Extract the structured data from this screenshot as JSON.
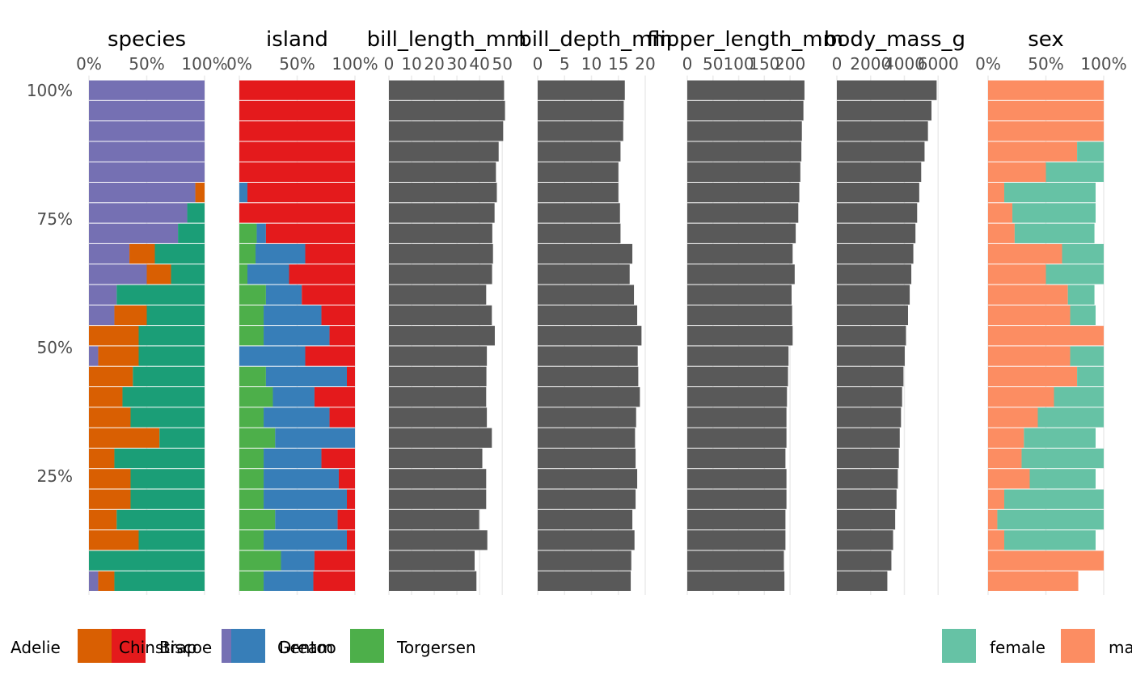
{
  "colors": {
    "Adelie": "#7570B3",
    "Chinstrap": "#D95F02",
    "Gentoo": "#1B9E77",
    "Biscoe": "#E41A1C",
    "Dream": "#377EB8",
    "Torgersen": "#4DAF4A",
    "female": "#66C2A5",
    "male": "#FC8D62",
    "numeric": "#595959",
    "grid": "#EBEBEB",
    "text": "#4D4D4D"
  },
  "y_axis": {
    "labels": [
      "100%",
      "75%",
      "50%",
      "25%"
    ],
    "values": [
      100,
      75,
      50,
      25
    ]
  },
  "chart_data": [
    {
      "type": "bar",
      "title": "species",
      "stacked": true,
      "orientation": "horizontal",
      "x_ticks": [
        "0%",
        "50%",
        "100%"
      ],
      "xlim": [
        0,
        100
      ],
      "levels": [
        "Adelie",
        "Chinstrap",
        "Gentoo"
      ],
      "rows": [
        [
          100,
          0,
          0
        ],
        [
          100,
          0,
          0
        ],
        [
          100,
          0,
          0
        ],
        [
          100,
          0,
          0
        ],
        [
          100,
          0,
          0
        ],
        [
          92,
          8,
          0
        ],
        [
          85,
          0,
          15
        ],
        [
          77,
          0,
          23
        ],
        [
          35,
          22,
          43
        ],
        [
          50,
          21,
          29
        ],
        [
          24,
          0,
          76
        ],
        [
          22,
          28,
          50
        ],
        [
          0,
          43,
          57
        ],
        [
          8,
          35,
          57
        ],
        [
          0,
          38,
          62
        ],
        [
          0,
          29,
          71
        ],
        [
          0,
          36,
          64
        ],
        [
          0,
          61,
          39
        ],
        [
          0,
          22,
          78
        ],
        [
          0,
          36,
          64
        ],
        [
          0,
          36,
          64
        ],
        [
          0,
          24,
          76
        ],
        [
          0,
          43,
          57
        ],
        [
          0,
          0,
          100
        ],
        [
          8,
          14,
          78
        ]
      ]
    },
    {
      "type": "bar",
      "title": "island",
      "stacked": true,
      "orientation": "horizontal",
      "x_ticks": [
        "0%",
        "50%",
        "100%"
      ],
      "xlim": [
        0,
        100
      ],
      "levels": [
        "Torgersen",
        "Dream",
        "Biscoe"
      ],
      "rows": [
        [
          0,
          0,
          100
        ],
        [
          0,
          0,
          100
        ],
        [
          0,
          0,
          100
        ],
        [
          0,
          0,
          100
        ],
        [
          0,
          0,
          100
        ],
        [
          0,
          7,
          93
        ],
        [
          0,
          0,
          100
        ],
        [
          15,
          8,
          77
        ],
        [
          14,
          43,
          43
        ],
        [
          7,
          36,
          57
        ],
        [
          23,
          31,
          46
        ],
        [
          21,
          50,
          29
        ],
        [
          21,
          57,
          22
        ],
        [
          0,
          57,
          43
        ],
        [
          23,
          70,
          7
        ],
        [
          29,
          36,
          35
        ],
        [
          21,
          57,
          22
        ],
        [
          31,
          69,
          0
        ],
        [
          21,
          50,
          29
        ],
        [
          21,
          65,
          14
        ],
        [
          21,
          72,
          7
        ],
        [
          31,
          54,
          15
        ],
        [
          21,
          72,
          7
        ],
        [
          36,
          29,
          35
        ],
        [
          21,
          43,
          36
        ]
      ]
    },
    {
      "type": "bar",
      "title": "bill_length_mm",
      "orientation": "horizontal",
      "x_ticks": [
        "0",
        "10",
        "20",
        "30",
        "40",
        "50"
      ],
      "xlim": [
        0,
        51
      ],
      "values": [
        50.8,
        51.2,
        50.4,
        48.4,
        47.2,
        47.6,
        46.6,
        45.6,
        45.9,
        45.5,
        42.9,
        45.4,
        46.7,
        43.2,
        43.0,
        42.9,
        43.2,
        45.4,
        41.2,
        42.9,
        42.9,
        39.8,
        43.4,
        37.8,
        38.6
      ]
    },
    {
      "type": "bar",
      "title": "bill_depth_mm",
      "orientation": "horizontal",
      "x_ticks": [
        "0",
        "5",
        "10",
        "15",
        "20"
      ],
      "xlim": [
        0,
        21.5
      ],
      "values": [
        16.2,
        16.0,
        15.9,
        15.4,
        15.0,
        15.0,
        15.3,
        15.4,
        17.6,
        17.1,
        17.9,
        18.5,
        19.3,
        18.6,
        18.7,
        19.0,
        18.3,
        18.1,
        18.2,
        18.5,
        18.2,
        17.6,
        18.0,
        17.4,
        17.3
      ]
    },
    {
      "type": "bar",
      "title": "flipper_length_mm",
      "orientation": "horizontal",
      "x_ticks": [
        "0",
        "50",
        "100",
        "150",
        "200"
      ],
      "xlim": [
        0,
        225
      ],
      "values": [
        228,
        226,
        223,
        222,
        220,
        218,
        216,
        211,
        205,
        209,
        203,
        204,
        205,
        197,
        196,
        194,
        193,
        193,
        191,
        193,
        193,
        191,
        191,
        188,
        189
      ]
    },
    {
      "type": "bar",
      "title": "body_mass_g",
      "orientation": "horizontal",
      "x_ticks": [
        "0",
        "2000",
        "4000",
        "6000"
      ],
      "xlim": [
        0,
        6850
      ],
      "values": [
        5910,
        5605,
        5395,
        5195,
        4995,
        4880,
        4755,
        4655,
        4530,
        4410,
        4315,
        4215,
        4095,
        4020,
        3945,
        3865,
        3800,
        3725,
        3670,
        3610,
        3535,
        3455,
        3330,
        3230,
        2990
      ]
    },
    {
      "type": "bar",
      "title": "sex",
      "stacked": true,
      "orientation": "horizontal",
      "x_ticks": [
        "0%",
        "50%",
        "100%"
      ],
      "xlim": [
        0,
        100
      ],
      "levels": [
        "male",
        "female"
      ],
      "rows": [
        [
          100,
          0
        ],
        [
          100,
          0
        ],
        [
          100,
          0
        ],
        [
          77,
          23
        ],
        [
          50,
          50
        ],
        [
          14,
          79
        ],
        [
          21,
          72
        ],
        [
          23,
          69
        ],
        [
          64,
          36
        ],
        [
          50,
          50
        ],
        [
          69,
          23
        ],
        [
          71,
          22
        ],
        [
          100,
          0
        ],
        [
          71,
          29
        ],
        [
          77,
          23
        ],
        [
          57,
          43
        ],
        [
          43,
          57
        ],
        [
          31,
          62
        ],
        [
          29,
          71
        ],
        [
          36,
          57
        ],
        [
          14,
          86
        ],
        [
          8,
          92
        ],
        [
          14,
          79
        ],
        [
          100,
          0
        ],
        [
          78,
          0
        ]
      ]
    }
  ],
  "legend": {
    "groups": [
      {
        "items": [
          "Adelie",
          "Biscoe",
          "Chinstrap",
          "Dream",
          "Gentoo",
          "Torgersen"
        ]
      },
      {
        "items": [
          "female",
          "male"
        ]
      }
    ]
  }
}
